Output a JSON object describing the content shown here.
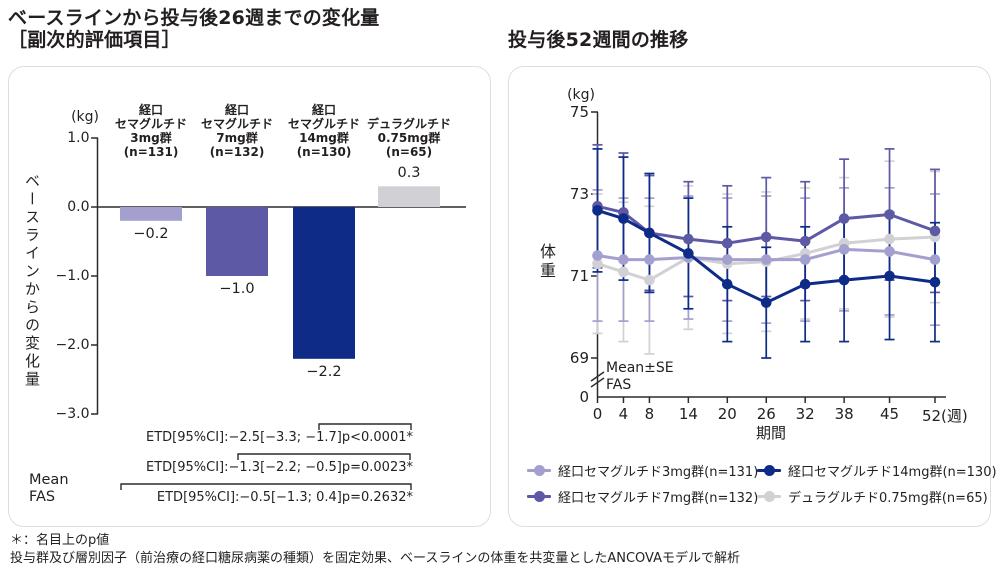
{
  "header": {
    "left_title_line1": "ベースラインから投与後26週までの変化量",
    "left_title_line2": "［副次的評価項目］",
    "right_title": "投与後52週間の推移"
  },
  "footnote": {
    "line1": "＊：名目上のp値",
    "line2": "投与群及び層別因子（前治療の経口糖尿病薬の種類）を固定効果、ベースラインの体重を共変量としたANCOVAモデルで解析"
  },
  "colors": {
    "sema3": "#a39fce",
    "sema7": "#5d59a5",
    "sema14": "#0e2b87",
    "dula": "#d1d1d5",
    "axis": "#2b2b2b",
    "text": "#231f20"
  },
  "chart_data": [
    {
      "type": "bar",
      "title": "ベースラインから投与後26週までの変化量［副次的評価項目］",
      "unit_label": "(kg)",
      "ylabel": "ベースラインからの変化量",
      "ylim": [
        -3.0,
        1.0
      ],
      "ytick_values": [
        1.0,
        0.0,
        -1.0,
        -2.0,
        -3.0
      ],
      "ytick_labels": [
        "1.0",
        "0.0",
        "−1.0",
        "−2.0",
        "−3.0"
      ],
      "groups": [
        {
          "name_lines": "経口\nセマグルチド\n3mg群\n(n=131)",
          "value": -0.2,
          "value_label": "−0.2",
          "color_key": "sema3"
        },
        {
          "name_lines": "経口\nセマグルチド\n7mg群\n(n=132)",
          "value": -1.0,
          "value_label": "−1.0",
          "color_key": "sema7"
        },
        {
          "name_lines": "経口\nセマグルチド\n14mg群\n(n=130)",
          "value": -2.2,
          "value_label": "−2.2",
          "color_key": "sema14"
        },
        {
          "name_lines": "デュラグルチド\n0.75mg群\n(n=65)",
          "value": 0.3,
          "value_label": "0.3",
          "color_key": "dula"
        }
      ],
      "stat_note": "Mean\nFAS",
      "comparisons": [
        {
          "compared": "経口セマグルチド14mg群 vs デュラグルチド0.75mg群",
          "text": "ETD[95%CI]:−2.5[−3.3; −1.7]p<0.0001*"
        },
        {
          "compared": "経口セマグルチド7mg群 vs デュラグルチド0.75mg群",
          "text": "ETD[95%CI]:−1.3[−2.2; −0.5]p=0.0023*"
        },
        {
          "compared": "経口セマグルチド3mg群 vs デュラグルチド0.75mg群",
          "text": "ETD[95%CI]:−0.5[−1.3; 0.4]p=0.2632*"
        }
      ]
    },
    {
      "type": "line",
      "title": "投与後52週間の推移",
      "unit_label": "(kg)",
      "ylabel": "体重",
      "xlabel": "期間",
      "ylim": [
        69,
        75
      ],
      "ytick_values": [
        75,
        73,
        71,
        69
      ],
      "ytick_labels": [
        "75",
        "73",
        "71",
        "69"
      ],
      "y_base_label": "0",
      "x_weeks": [
        0,
        4,
        8,
        14,
        20,
        26,
        32,
        38,
        45,
        52
      ],
      "xtick_labels": [
        "0",
        "4",
        "8",
        "14",
        "20",
        "26",
        "32",
        "38",
        "45",
        "52(週)"
      ],
      "annotation": "Mean±SE\nFAS",
      "series": [
        {
          "name": "経口セマグルチド3mg群(n=131)",
          "color_key": "sema3",
          "values": [
            71.5,
            71.4,
            71.4,
            71.45,
            71.4,
            71.4,
            71.4,
            71.65,
            71.6,
            71.4
          ],
          "se": [
            1.6,
            1.5,
            1.5,
            1.5,
            1.5,
            1.55,
            1.5,
            1.5,
            1.55,
            1.6
          ]
        },
        {
          "name": "経口セマグルチド7mg群(n=132)",
          "color_key": "sema7",
          "values": [
            72.7,
            72.55,
            72.05,
            71.9,
            71.8,
            71.95,
            71.85,
            72.4,
            72.5,
            72.1
          ],
          "se": [
            1.5,
            1.45,
            1.4,
            1.4,
            1.4,
            1.45,
            1.45,
            1.45,
            1.6,
            1.5
          ]
        },
        {
          "name": "経口セマグルチド14mg群(n=130)",
          "color_key": "sema14",
          "values": [
            72.6,
            72.4,
            72.05,
            71.55,
            70.8,
            70.35,
            70.8,
            70.9,
            71.0,
            70.85
          ],
          "se": [
            1.5,
            1.5,
            1.45,
            1.35,
            1.4,
            1.35,
            1.4,
            1.5,
            1.55,
            1.45
          ]
        },
        {
          "name": "デュラグルチド0.75mg群(n=65)",
          "color_key": "dula",
          "values": [
            71.3,
            71.1,
            70.9,
            71.45,
            71.3,
            71.35,
            71.55,
            71.8,
            71.9,
            71.95
          ],
          "se": [
            1.7,
            1.7,
            1.8,
            1.75,
            1.7,
            1.7,
            1.6,
            1.6,
            1.9,
            1.6
          ]
        }
      ],
      "legend_display_order": [
        0,
        2,
        1,
        3
      ],
      "draw_order": [
        3,
        0,
        1,
        2
      ]
    }
  ]
}
